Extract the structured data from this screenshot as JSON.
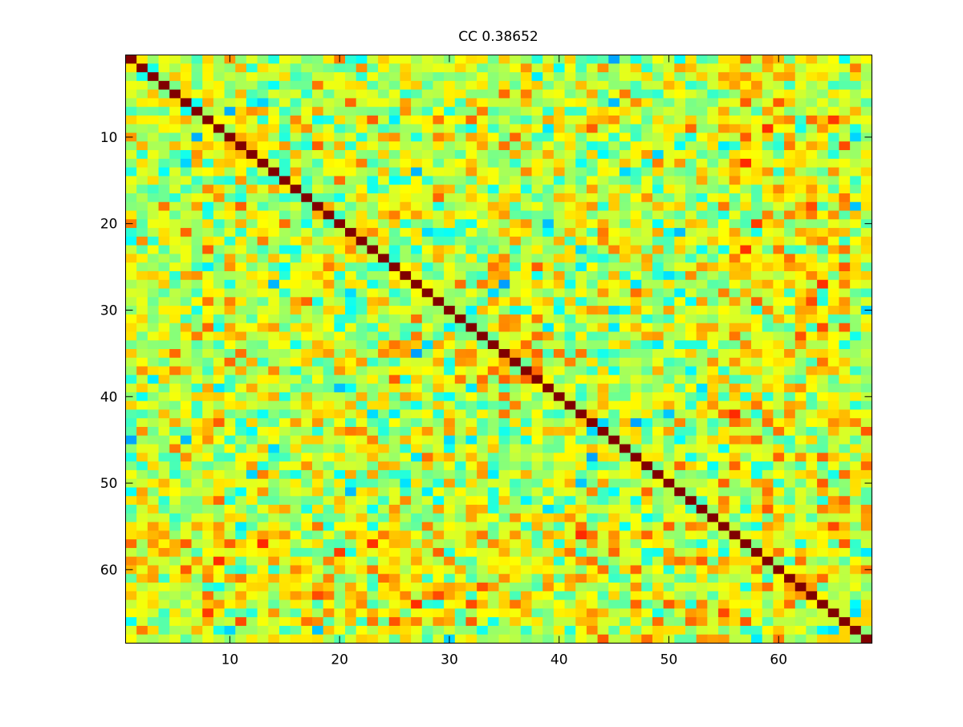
{
  "chart_data": {
    "type": "heatmap",
    "title": "CC 0.38652",
    "xlabel": "",
    "ylabel": "",
    "n_rows": 68,
    "n_cols": 68,
    "x_ticks": [
      "10",
      "20",
      "30",
      "40",
      "50",
      "60"
    ],
    "y_ticks": [
      "10",
      "20",
      "30",
      "40",
      "50",
      "60"
    ],
    "x_tick_values": [
      10,
      20,
      30,
      40,
      50,
      60
    ],
    "y_tick_values": [
      10,
      20,
      30,
      40,
      50,
      60
    ],
    "xlim": [
      0.5,
      68.5
    ],
    "ylim": [
      0.5,
      68.5
    ],
    "y_direction": "reversed",
    "grid": false,
    "legend": "none",
    "colormap": "jet",
    "colormap_stops": [
      "#00008f",
      "#0000ff",
      "#00ffff",
      "#80ff80",
      "#ffff00",
      "#ff8000",
      "#ff0000",
      "#800000"
    ],
    "color_range": [
      0,
      1
    ],
    "diagonal_value": 1.0,
    "value_mean": 0.5,
    "value_spread": 0.17
  }
}
